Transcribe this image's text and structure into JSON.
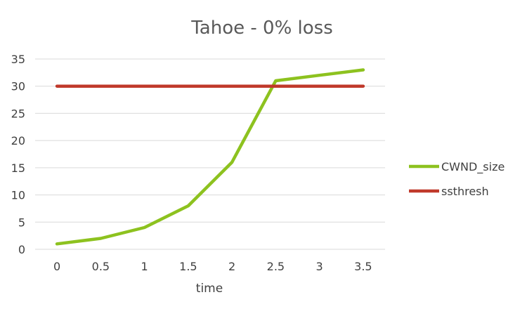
{
  "chart_data": {
    "type": "line",
    "title": "Tahoe - 0% loss",
    "xlabel": "time",
    "ylabel": "",
    "categories": [
      "0",
      "0.5",
      "1",
      "1.5",
      "2",
      "2.5",
      "3",
      "3.5"
    ],
    "ylim": [
      0,
      35
    ],
    "yticks": [
      "0",
      "5",
      "10",
      "15",
      "20",
      "25",
      "30",
      "35"
    ],
    "grid": true,
    "legend_position": "right",
    "series": [
      {
        "name": "CWND_size",
        "color": "#8dc21f",
        "values": [
          1,
          2,
          4,
          8,
          16,
          31,
          32,
          33
        ]
      },
      {
        "name": "ssthresh",
        "color": "#c0392b",
        "values": [
          30,
          30,
          30,
          30,
          30,
          30,
          30,
          30
        ]
      }
    ]
  }
}
